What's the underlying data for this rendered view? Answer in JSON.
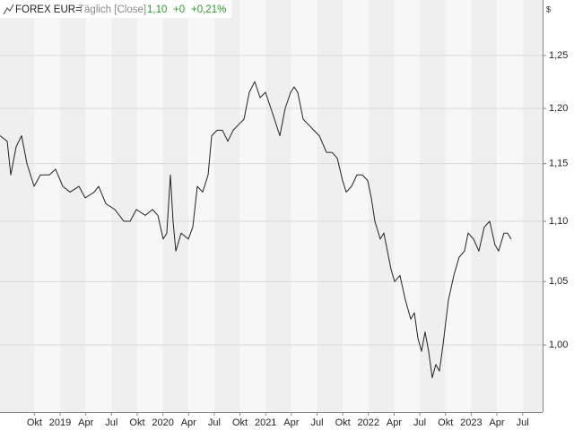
{
  "chart_data": {
    "type": "line",
    "title": "FOREX EUR=",
    "subtitle": "Täglich [Close]",
    "quote": {
      "last": "1,10",
      "change": "+0",
      "change_percent": "+0,21%"
    },
    "y_unit": "$",
    "log_scale": true,
    "grid": true,
    "color": "#222222",
    "xlim": [
      2018.415,
      2023.695
    ],
    "xticks": [
      {
        "value": 2018.75,
        "label": "Okt"
      },
      {
        "value": 2019,
        "label": "2019"
      },
      {
        "value": 2019.25,
        "label": "Apr"
      },
      {
        "value": 2019.5,
        "label": "Jul"
      },
      {
        "value": 2019.75,
        "label": "Okt"
      },
      {
        "value": 2020,
        "label": "2020"
      },
      {
        "value": 2020.25,
        "label": "Apr"
      },
      {
        "value": 2020.5,
        "label": "Jul"
      },
      {
        "value": 2020.75,
        "label": "Okt"
      },
      {
        "value": 2021,
        "label": "2021"
      },
      {
        "value": 2021.25,
        "label": "Apr"
      },
      {
        "value": 2021.5,
        "label": "Jul"
      },
      {
        "value": 2021.75,
        "label": "Okt"
      },
      {
        "value": 2022,
        "label": "2022"
      },
      {
        "value": 2022.25,
        "label": "Apr"
      },
      {
        "value": 2022.5,
        "label": "Jul"
      },
      {
        "value": 2022.75,
        "label": "Okt"
      },
      {
        "value": 2023,
        "label": "2023"
      },
      {
        "value": 2023.25,
        "label": "Apr"
      },
      {
        "value": 2023.5,
        "label": "Jul"
      }
    ],
    "ylim": [
      0.9495,
      1.3046
    ],
    "yticks": [
      {
        "value": 1.0,
        "label": "1,00"
      },
      {
        "value": 1.05,
        "label": "1,05"
      },
      {
        "value": 1.1,
        "label": "1,10"
      },
      {
        "value": 1.15,
        "label": "1,15"
      },
      {
        "value": 1.2,
        "label": "1,20"
      },
      {
        "value": 1.25,
        "label": "1,25"
      }
    ],
    "x": [
      2018.415,
      2018.485,
      2018.52,
      2018.572,
      2018.625,
      2018.677,
      2018.747,
      2018.808,
      2018.895,
      2018.956,
      2019.026,
      2019.096,
      2019.183,
      2019.244,
      2019.332,
      2019.375,
      2019.445,
      2019.532,
      2019.62,
      2019.681,
      2019.742,
      2019.829,
      2019.899,
      2019.951,
      2020.003,
      2020.038,
      2020.073,
      2020.099,
      2020.126,
      2020.178,
      2020.248,
      2020.291,
      2020.335,
      2020.387,
      2020.44,
      2020.475,
      2020.527,
      2020.579,
      2020.632,
      2020.684,
      2020.736,
      2020.789,
      2020.841,
      2020.894,
      2020.946,
      2020.998,
      2021.051,
      2021.086,
      2021.138,
      2021.19,
      2021.243,
      2021.277,
      2021.312,
      2021.365,
      2021.417,
      2021.469,
      2021.522,
      2021.592,
      2021.644,
      2021.696,
      2021.749,
      2021.784,
      2021.836,
      2021.888,
      2021.941,
      2021.993,
      2022.028,
      2022.063,
      2022.115,
      2022.15,
      2022.185,
      2022.22,
      2022.255,
      2022.307,
      2022.36,
      2022.412,
      2022.447,
      2022.482,
      2022.517,
      2022.551,
      2022.586,
      2022.621,
      2022.656,
      2022.691,
      2022.726,
      2022.778,
      2022.831,
      2022.883,
      2022.935,
      2022.97,
      2023.023,
      2023.075,
      2023.127,
      2023.18,
      2023.232,
      2023.267,
      2023.319,
      2023.354,
      2023.389
    ],
    "values": [
      1.175,
      1.17,
      1.14,
      1.165,
      1.175,
      1.15,
      1.13,
      1.14,
      1.14,
      1.145,
      1.13,
      1.125,
      1.13,
      1.12,
      1.125,
      1.13,
      1.115,
      1.11,
      1.1,
      1.1,
      1.11,
      1.105,
      1.11,
      1.105,
      1.085,
      1.09,
      1.14,
      1.1,
      1.075,
      1.09,
      1.085,
      1.095,
      1.13,
      1.125,
      1.14,
      1.175,
      1.18,
      1.18,
      1.17,
      1.18,
      1.185,
      1.19,
      1.215,
      1.225,
      1.21,
      1.215,
      1.2,
      1.19,
      1.175,
      1.2,
      1.215,
      1.22,
      1.215,
      1.19,
      1.185,
      1.18,
      1.175,
      1.16,
      1.16,
      1.155,
      1.135,
      1.125,
      1.13,
      1.14,
      1.14,
      1.135,
      1.12,
      1.1,
      1.085,
      1.09,
      1.075,
      1.06,
      1.05,
      1.055,
      1.035,
      1.02,
      1.025,
      1.005,
      0.995,
      1.01,
      0.995,
      0.975,
      0.985,
      0.98,
      1.0,
      1.035,
      1.055,
      1.07,
      1.075,
      1.09,
      1.085,
      1.075,
      1.095,
      1.1,
      1.08,
      1.075,
      1.09,
      1.09,
      1.085
    ]
  }
}
